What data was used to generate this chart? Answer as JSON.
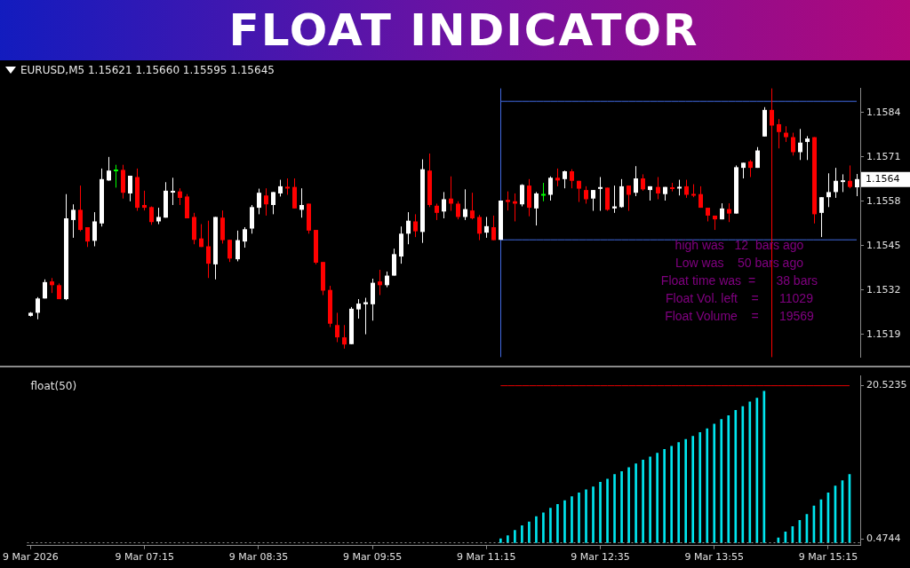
{
  "chart_data": [
    {
      "type": "candlestick",
      "title": "FLOAT INDICATOR",
      "subtitle": "EURUSD,M5  1.15621 1.15660 1.15595 1.15645",
      "categories": [
        "9 Mar 05:55",
        "9 Mar 06:00",
        "9 Mar 06:05",
        "9 Mar 06:10",
        "9 Mar 06:15",
        "9 Mar 06:20",
        "9 Mar 06:25",
        "9 Mar 06:30",
        "9 Mar 06:35",
        "9 Mar 06:40",
        "9 Mar 06:45",
        "9 Mar 06:50",
        "9 Mar 06:55",
        "9 Mar 07:00",
        "9 Mar 07:05",
        "9 Mar 07:10",
        "9 Mar 07:15",
        "9 Mar 07:20",
        "9 Mar 07:25",
        "9 Mar 07:30",
        "9 Mar 07:35",
        "9 Mar 07:40",
        "9 Mar 07:45",
        "9 Mar 07:50",
        "9 Mar 07:55",
        "9 Mar 08:00",
        "9 Mar 08:05",
        "9 Mar 08:10",
        "9 Mar 08:15",
        "9 Mar 08:20",
        "9 Mar 08:25",
        "9 Mar 08:30",
        "9 Mar 08:35",
        "9 Mar 08:40",
        "9 Mar 08:45",
        "9 Mar 08:50",
        "9 Mar 08:55",
        "9 Mar 09:00",
        "9 Mar 09:05",
        "9 Mar 09:10",
        "9 Mar 09:15",
        "9 Mar 09:20",
        "9 Mar 09:25",
        "9 Mar 09:30",
        "9 Mar 09:35",
        "9 Mar 09:40",
        "9 Mar 09:45",
        "9 Mar 09:50",
        "9 Mar 09:55",
        "9 Mar 10:00",
        "9 Mar 10:05",
        "9 Mar 10:10",
        "9 Mar 10:15",
        "9 Mar 10:20",
        "9 Mar 10:25",
        "9 Mar 10:30",
        "9 Mar 10:35",
        "9 Mar 10:40",
        "9 Mar 10:45",
        "9 Mar 10:50",
        "9 Mar 10:55",
        "9 Mar 11:00",
        "9 Mar 11:05",
        "9 Mar 11:10",
        "9 Mar 11:15",
        "9 Mar 11:20",
        "9 Mar 11:25",
        "9 Mar 11:30",
        "9 Mar 11:35",
        "9 Mar 11:40",
        "9 Mar 11:45",
        "9 Mar 11:50",
        "9 Mar 11:55",
        "9 Mar 12:00",
        "9 Mar 12:05",
        "9 Mar 12:10",
        "9 Mar 12:15",
        "9 Mar 12:20",
        "9 Mar 12:25",
        "9 Mar 12:30",
        "9 Mar 12:35",
        "9 Mar 12:40",
        "9 Mar 12:45",
        "9 Mar 12:50",
        "9 Mar 12:55",
        "9 Mar 13:00",
        "9 Mar 13:05",
        "9 Mar 13:10",
        "9 Mar 13:15",
        "9 Mar 13:20",
        "9 Mar 13:25",
        "9 Mar 13:30",
        "9 Mar 13:35",
        "9 Mar 13:40",
        "9 Mar 13:45",
        "9 Mar 13:50",
        "9 Mar 13:55",
        "9 Mar 14:00",
        "9 Mar 14:05",
        "9 Mar 14:10",
        "9 Mar 14:15",
        "9 Mar 14:20",
        "9 Mar 14:25",
        "9 Mar 14:30",
        "9 Mar 14:35",
        "9 Mar 14:40",
        "9 Mar 14:45",
        "9 Mar 14:50",
        "9 Mar 14:55",
        "9 Mar 15:00",
        "9 Mar 15:05",
        "9 Mar 15:10",
        "9 Mar 15:15",
        "9 Mar 15:20",
        "9 Mar 15:25",
        "9 Mar 15:30",
        "9 Mar 15:35"
      ],
      "ohlc": [
        [
          1.15244,
          1.15255,
          1.15242,
          1.15253
        ],
        [
          1.15253,
          1.15299,
          1.15234,
          1.15295
        ],
        [
          1.15295,
          1.15351,
          1.15295,
          1.15343
        ],
        [
          1.15345,
          1.15355,
          1.15311,
          1.15334
        ],
        [
          1.15334,
          1.15339,
          1.15293,
          1.15293
        ],
        [
          1.15293,
          1.15601,
          1.1529,
          1.1553
        ],
        [
          1.15525,
          1.15571,
          1.15473,
          1.15555
        ],
        [
          1.15555,
          1.15626,
          1.15492,
          1.15496
        ],
        [
          1.15504,
          1.15504,
          1.15446,
          1.15462
        ],
        [
          1.15464,
          1.15548,
          1.15448,
          1.15521
        ],
        [
          1.15515,
          1.15676,
          1.15506,
          1.15645
        ],
        [
          1.15641,
          1.1571,
          1.1564,
          1.1567
        ],
        [
          1.1567,
          1.15687,
          1.1562,
          1.15671
        ],
        [
          1.15672,
          1.15687,
          1.15588,
          1.15605
        ],
        [
          1.15603,
          1.15655,
          1.1558,
          1.15655
        ],
        [
          1.15651,
          1.15676,
          1.15552,
          1.15561
        ],
        [
          1.15569,
          1.15611,
          1.15553,
          1.15561
        ],
        [
          1.15563,
          1.15565,
          1.15511,
          1.15519
        ],
        [
          1.15521,
          1.15561,
          1.15513,
          1.15534
        ],
        [
          1.15532,
          1.15636,
          1.15532,
          1.15611
        ],
        [
          1.15607,
          1.15649,
          1.15569,
          1.15609
        ],
        [
          1.15609,
          1.15618,
          1.15569,
          1.1559
        ],
        [
          1.15594,
          1.15601,
          1.1553,
          1.1553
        ],
        [
          1.15534,
          1.15546,
          1.15454,
          1.15467
        ],
        [
          1.15471,
          1.15513,
          1.15446,
          1.15446
        ],
        [
          1.15448,
          1.15523,
          1.15355,
          1.15397
        ],
        [
          1.15395,
          1.15534,
          1.15351,
          1.15534
        ],
        [
          1.15532,
          1.15553,
          1.15456,
          1.15466
        ],
        [
          1.15467,
          1.15467,
          1.15402,
          1.15412
        ],
        [
          1.1541,
          1.15494,
          1.15404,
          1.15466
        ],
        [
          1.15462,
          1.15504,
          1.15444,
          1.15498
        ],
        [
          1.155,
          1.15569,
          1.15485,
          1.15563
        ],
        [
          1.15561,
          1.15617,
          1.15542,
          1.15605
        ],
        [
          1.15597,
          1.15618,
          1.15538,
          1.15571
        ],
        [
          1.15569,
          1.15607,
          1.15542,
          1.15607
        ],
        [
          1.15603,
          1.15643,
          1.15594,
          1.15624
        ],
        [
          1.15622,
          1.15647,
          1.15599,
          1.15618
        ],
        [
          1.15622,
          1.15647,
          1.15559,
          1.15559
        ],
        [
          1.15555,
          1.15618,
          1.15532,
          1.15569
        ],
        [
          1.15573,
          1.15573,
          1.15485,
          1.15494
        ],
        [
          1.15496,
          1.15496,
          1.15395,
          1.154
        ],
        [
          1.15402,
          1.15402,
          1.15305,
          1.15318
        ],
        [
          1.1532,
          1.15332,
          1.15211,
          1.15221
        ],
        [
          1.15217,
          1.15253,
          1.15167,
          1.15181
        ],
        [
          1.15181,
          1.15217,
          1.15148,
          1.1516
        ],
        [
          1.15161,
          1.1527,
          1.15161,
          1.15265
        ],
        [
          1.15263,
          1.15293,
          1.15236,
          1.1528
        ],
        [
          1.15278,
          1.15297,
          1.1519,
          1.15284
        ],
        [
          1.15278,
          1.15353,
          1.1523,
          1.15341
        ],
        [
          1.15345,
          1.15379,
          1.15305,
          1.15334
        ],
        [
          1.15334,
          1.15374,
          1.15328,
          1.15362
        ],
        [
          1.15362,
          1.15441,
          1.15362,
          1.15425
        ],
        [
          1.15418,
          1.15506,
          1.15397,
          1.15485
        ],
        [
          1.15485,
          1.15548,
          1.15454,
          1.15523
        ],
        [
          1.15521,
          1.15542,
          1.15475,
          1.15492
        ],
        [
          1.1549,
          1.15703,
          1.15458,
          1.15674
        ],
        [
          1.1567,
          1.1572,
          1.15563,
          1.15569
        ],
        [
          1.15567,
          1.15573,
          1.15525,
          1.15546
        ],
        [
          1.1555,
          1.15607,
          1.1553,
          1.15586
        ],
        [
          1.15588,
          1.15653,
          1.15552,
          1.15573
        ],
        [
          1.15573,
          1.1558,
          1.15527,
          1.15534
        ],
        [
          1.15534,
          1.15615,
          1.15525,
          1.15557
        ],
        [
          1.15553,
          1.15605,
          1.15527,
          1.1553
        ],
        [
          1.15534,
          1.1554,
          1.15466,
          1.15485
        ],
        [
          1.15488,
          1.15534,
          1.15473,
          1.15507
        ],
        [
          1.15504,
          1.15538,
          1.15466,
          1.15466
        ],
        [
          1.15467,
          1.15582,
          1.15467,
          1.15582
        ],
        [
          1.15584,
          1.15609,
          1.15553,
          1.15578
        ],
        [
          1.1558,
          1.15603,
          1.15521,
          1.15573
        ],
        [
          1.15571,
          1.1563,
          1.15565,
          1.15628
        ],
        [
          1.15626,
          1.15645,
          1.15536,
          1.15561
        ],
        [
          1.15559,
          1.15607,
          1.15509,
          1.15603
        ],
        [
          1.15599,
          1.15634,
          1.1558,
          1.15599
        ],
        [
          1.15599,
          1.15653,
          1.15582,
          1.15649
        ],
        [
          1.15649,
          1.15676,
          1.15624,
          1.15641
        ],
        [
          1.15645,
          1.1567,
          1.15618,
          1.15668
        ],
        [
          1.15668,
          1.15674,
          1.15618,
          1.1564
        ],
        [
          1.1564,
          1.1564,
          1.15578,
          1.15617
        ],
        [
          1.15613,
          1.15624,
          1.15573,
          1.15586
        ],
        [
          1.15588,
          1.15613,
          1.15552,
          1.15613
        ],
        [
          1.15618,
          1.15651,
          1.15552,
          1.1562
        ],
        [
          1.1562,
          1.1562,
          1.15552,
          1.15555
        ],
        [
          1.15559,
          1.15626,
          1.15546,
          1.15565
        ],
        [
          1.15563,
          1.15645,
          1.15561,
          1.15624
        ],
        [
          1.15626,
          1.15626,
          1.15552,
          1.15599
        ],
        [
          1.15605,
          1.15683,
          1.15595,
          1.15647
        ],
        [
          1.15647,
          1.15659,
          1.15611,
          1.15615
        ],
        [
          1.15613,
          1.15624,
          1.15582,
          1.15624
        ],
        [
          1.15622,
          1.15651,
          1.15586,
          1.15603
        ],
        [
          1.15601,
          1.15622,
          1.15582,
          1.15622
        ],
        [
          1.1562,
          1.15634,
          1.15609,
          1.15617
        ],
        [
          1.15618,
          1.15643,
          1.15597,
          1.15622
        ],
        [
          1.15624,
          1.15643,
          1.1559,
          1.15599
        ],
        [
          1.15601,
          1.1563,
          1.15592,
          1.15597
        ],
        [
          1.15601,
          1.15624,
          1.15561,
          1.15561
        ],
        [
          1.15561,
          1.15561,
          1.15521,
          1.15538
        ],
        [
          1.15538,
          1.15538,
          1.15496,
          1.15527
        ],
        [
          1.15527,
          1.15574,
          1.15527,
          1.15559
        ],
        [
          1.15557,
          1.15574,
          1.15519,
          1.15544
        ],
        [
          1.15544,
          1.15685,
          1.15544,
          1.1568
        ],
        [
          1.15678,
          1.15693,
          1.15647,
          1.15693
        ],
        [
          1.15697,
          1.15701,
          1.15651,
          1.15678
        ],
        [
          1.15678,
          1.15739,
          1.15678,
          1.15729
        ],
        [
          1.1577,
          1.15856,
          1.1577,
          1.15848
        ],
        [
          1.15848,
          1.15873,
          1.15796,
          1.15802
        ],
        [
          1.15806,
          1.15821,
          1.15735,
          1.15783
        ],
        [
          1.15781,
          1.158,
          1.15754,
          1.15768
        ],
        [
          1.15768,
          1.15781,
          1.15714,
          1.15724
        ],
        [
          1.15724,
          1.15792,
          1.15701,
          1.15752
        ],
        [
          1.15754,
          1.15771,
          1.15701,
          1.15764
        ],
        [
          1.15768,
          1.15768,
          1.15515,
          1.15542
        ],
        [
          1.15546,
          1.15592,
          1.15475,
          1.15592
        ],
        [
          1.15592,
          1.15662,
          1.15563,
          1.15607
        ],
        [
          1.15607,
          1.15678,
          1.1559,
          1.1564
        ],
        [
          1.15638,
          1.15659,
          1.15607,
          1.1564
        ],
        [
          1.1564,
          1.15685,
          1.15618,
          1.15622
        ],
        [
          1.15621,
          1.1566,
          1.15595,
          1.15645
        ]
      ],
      "colors": [
        "#ffffff",
        "#ffffff",
        "#ffffff",
        "#ff0000",
        "#ff0000",
        "#ffffff",
        "#ffffff",
        "#ff0000",
        "#ff0000",
        "#ffffff",
        "#ffffff",
        "#ffffff",
        "#00ff00",
        "#ff0000",
        "#ffffff",
        "#ff0000",
        "#ff0000",
        "#ff0000",
        "#ffffff",
        "#ffffff",
        "#ffffff",
        "#ff0000",
        "#ff0000",
        "#ff0000",
        "#ff0000",
        "#ff0000",
        "#ffffff",
        "#ff0000",
        "#ff0000",
        "#ffffff",
        "#ffffff",
        "#ffffff",
        "#ffffff",
        "#ff0000",
        "#ffffff",
        "#ffffff",
        "#ff0000",
        "#ff0000",
        "#ffffff",
        "#ff0000",
        "#ff0000",
        "#ff0000",
        "#ff0000",
        "#ff0000",
        "#ff0000",
        "#ffffff",
        "#ffffff",
        "#ffffff",
        "#ffffff",
        "#ff0000",
        "#ffffff",
        "#ffffff",
        "#ffffff",
        "#ffffff",
        "#ff0000",
        "#ffffff",
        "#ff0000",
        "#ff0000",
        "#ffffff",
        "#ff0000",
        "#ff0000",
        "#ffffff",
        "#ff0000",
        "#ff0000",
        "#ffffff",
        "#ff0000",
        "#ffffff",
        "#ff0000",
        "#ff0000",
        "#ffffff",
        "#ff0000",
        "#ffffff",
        "#00ff00",
        "#ffffff",
        "#ff0000",
        "#ffffff",
        "#ff0000",
        "#ff0000",
        "#ff0000",
        "#ffffff",
        "#ffffff",
        "#ff0000",
        "#ffffff",
        "#ffffff",
        "#ff0000",
        "#ffffff",
        "#ff0000",
        "#ffffff",
        "#ff0000",
        "#ffffff",
        "#ff0000",
        "#ffffff",
        "#ff0000",
        "#ff0000",
        "#ff0000",
        "#ff0000",
        "#ff0000",
        "#ffffff",
        "#ff0000",
        "#ffffff",
        "#ffffff",
        "#ff0000",
        "#ffffff",
        "#ffffff",
        "#ff0000",
        "#ff0000",
        "#ff0000",
        "#ff0000",
        "#ffffff",
        "#ffffff",
        "#ff0000",
        "#ffffff",
        "#ffffff",
        "#ffffff",
        "#ffffff",
        "#ff0000",
        "#ffffff"
      ],
      "series": [
        {
          "type": "line",
          "color": "#4169e1",
          "values": [
            null,
            null,
            null,
            null,
            null,
            null,
            null,
            null,
            null,
            null,
            null,
            null,
            null,
            null,
            null,
            null,
            null,
            null,
            null,
            null,
            null,
            null,
            null,
            null,
            null,
            null,
            null,
            null,
            null,
            null,
            null,
            null,
            null,
            null,
            null,
            null,
            null,
            null,
            null,
            null,
            null,
            null,
            null,
            null,
            null,
            null,
            null,
            null,
            null,
            null,
            null,
            null,
            null,
            null,
            null,
            null,
            null,
            null,
            null,
            null,
            null,
            null,
            null,
            null,
            null,
            null,
            1.15873,
            1.15873,
            1.15873,
            1.15873,
            1.15873,
            1.15873,
            1.15873,
            1.15873,
            1.15873,
            1.15873,
            1.15873,
            1.15873,
            1.15873,
            1.15873,
            1.15873,
            1.15873,
            1.15873,
            1.15873,
            1.15873,
            1.15873,
            1.15873,
            1.15873,
            1.15873,
            1.15873,
            1.15873,
            1.15873,
            1.15873,
            1.15873,
            1.15873,
            1.15873,
            1.15873,
            1.15873,
            1.15873,
            1.15873,
            1.15873,
            1.15873,
            1.15873,
            1.15873,
            1.15873,
            1.15873,
            1.15873,
            1.15873,
            1.15873,
            1.15873,
            1.15873,
            1.15873,
            1.15873,
            1.15873,
            1.15873,
            1.15873,
            1.15873
          ]
        },
        {
          "type": "line",
          "color": "#4169e1",
          "values": [
            null,
            null,
            null,
            null,
            null,
            null,
            null,
            null,
            null,
            null,
            null,
            null,
            null,
            null,
            null,
            null,
            null,
            null,
            null,
            null,
            null,
            null,
            null,
            null,
            null,
            null,
            null,
            null,
            null,
            null,
            null,
            null,
            null,
            null,
            null,
            null,
            null,
            null,
            null,
            null,
            null,
            null,
            null,
            null,
            null,
            null,
            null,
            null,
            null,
            null,
            null,
            null,
            null,
            null,
            null,
            null,
            null,
            null,
            null,
            null,
            null,
            null,
            null,
            null,
            null,
            null,
            1.15467,
            1.15467,
            1.15467,
            1.15467,
            1.15467,
            1.15467,
            1.15467,
            1.15467,
            1.15467,
            1.15467,
            1.15467,
            1.15467,
            1.15467,
            1.15467,
            1.15467,
            1.15467,
            1.15467,
            1.15467,
            1.15467,
            1.15467,
            1.15467,
            1.15467,
            1.15467,
            1.15467,
            1.15467,
            1.15467,
            1.15467,
            1.15467,
            1.15467,
            1.15467,
            1.15467,
            1.15467,
            1.15467,
            1.15467,
            1.15467,
            1.15467,
            1.15467,
            1.15467,
            1.15467,
            1.15467,
            1.15467,
            1.15467,
            1.15467,
            1.15467,
            1.15467,
            1.15467,
            1.15467,
            1.15467,
            1.15467,
            1.15467,
            1.15467
          ]
        }
      ],
      "ref_lines": [
        {
          "axis": "x",
          "value": "9 Mar 11:25",
          "color": "#4169e1"
        },
        {
          "axis": "x",
          "value": "9 Mar 14:35",
          "color": "#ff0000"
        }
      ],
      "annotations": [
        "high was   12  bars ago",
        "Low was    50 bars ago",
        "Float time was  =      38 bars",
        "Float Vol. left    =      11029",
        "Float Volume    =      19569",
        "1.1564"
      ],
      "ylim": [
        1.15123,
        1.15911
      ],
      "yticks": [
        1.1519,
        1.1532,
        1.1545,
        1.1558,
        1.1571,
        1.1584
      ],
      "tick_labels": "y",
      "legend": false,
      "grid": false
    },
    {
      "type": "bar",
      "title": "float(50)",
      "categories": [
        "9 Mar 2026",
        null,
        null,
        null,
        null,
        null,
        null,
        null,
        null,
        null,
        null,
        null,
        null,
        null,
        null,
        null,
        "9 Mar 07:15",
        null,
        null,
        null,
        null,
        null,
        null,
        null,
        null,
        null,
        null,
        null,
        null,
        null,
        null,
        null,
        "9 Mar 08:35",
        null,
        null,
        null,
        null,
        null,
        null,
        null,
        null,
        null,
        null,
        null,
        null,
        null,
        null,
        null,
        "9 Mar 09:55",
        null,
        null,
        null,
        null,
        null,
        null,
        null,
        null,
        null,
        null,
        null,
        null,
        null,
        null,
        null,
        "9 Mar 11:15",
        null,
        null,
        null,
        null,
        null,
        null,
        null,
        null,
        null,
        null,
        null,
        null,
        null,
        null,
        null,
        "9 Mar 12:35",
        null,
        null,
        null,
        null,
        null,
        null,
        null,
        null,
        null,
        null,
        null,
        null,
        null,
        null,
        null,
        "9 Mar 13:55",
        null,
        null,
        null,
        null,
        null,
        null,
        null,
        null,
        null,
        null,
        null,
        null,
        null,
        null,
        null,
        "9 Mar 15:15",
        null,
        null,
        null,
        null
      ],
      "series": [
        {
          "type": "bar",
          "color": "#00e5ee",
          "values": [
            null,
            null,
            null,
            null,
            null,
            null,
            null,
            null,
            null,
            null,
            null,
            null,
            null,
            null,
            null,
            null,
            null,
            null,
            null,
            null,
            null,
            null,
            null,
            null,
            null,
            null,
            null,
            null,
            null,
            null,
            null,
            null,
            null,
            null,
            null,
            null,
            null,
            null,
            null,
            null,
            null,
            null,
            null,
            null,
            null,
            null,
            null,
            null,
            null,
            null,
            null,
            null,
            null,
            null,
            null,
            null,
            null,
            null,
            null,
            null,
            null,
            null,
            null,
            null,
            null,
            null,
            0.5,
            0.9,
            1.6,
            2.2,
            2.7,
            3.4,
            3.9,
            4.5,
            5.0,
            5.5,
            6.0,
            6.5,
            6.9,
            7.3,
            7.9,
            8.3,
            8.9,
            9.3,
            9.8,
            10.3,
            10.8,
            11.2,
            11.7,
            12.2,
            12.6,
            13.1,
            13.5,
            13.9,
            14.4,
            14.9,
            15.5,
            16.1,
            16.6,
            17.3,
            17.8,
            18.4,
            18.9,
            19.8,
            null,
            0.6,
            1.4,
            2.1,
            2.9,
            3.7,
            4.8,
            5.6,
            6.5,
            7.4,
            8.1,
            8.9,
            null
          ]
        },
        {
          "type": "line",
          "color": "#e00000",
          "values": [
            null,
            null,
            null,
            null,
            null,
            null,
            null,
            null,
            null,
            null,
            null,
            null,
            null,
            null,
            null,
            null,
            null,
            null,
            null,
            null,
            null,
            null,
            null,
            null,
            null,
            null,
            null,
            null,
            null,
            null,
            null,
            null,
            null,
            null,
            null,
            null,
            null,
            null,
            null,
            null,
            null,
            null,
            null,
            null,
            null,
            null,
            null,
            null,
            null,
            null,
            null,
            null,
            null,
            null,
            null,
            null,
            null,
            null,
            null,
            null,
            null,
            null,
            null,
            null,
            null,
            null,
            20.5235,
            20.5235,
            20.5235,
            20.5235,
            20.5235,
            20.5235,
            20.5235,
            20.5235,
            20.5235,
            20.5235,
            20.5235,
            20.5235,
            20.5235,
            20.5235,
            20.5235,
            20.5235,
            20.5235,
            20.5235,
            20.5235,
            20.5235,
            20.5235,
            20.5235,
            20.5235,
            20.5235,
            20.5235,
            20.5235,
            20.5235,
            20.5235,
            20.5235,
            20.5235,
            20.5235,
            20.5235,
            20.5235,
            20.5235,
            20.5235,
            20.5235,
            20.5235,
            20.5235,
            20.5235,
            20.5235,
            20.5235,
            20.5235,
            20.5235,
            20.5235,
            20.5235,
            20.5235,
            20.5235,
            20.5235,
            20.5235,
            20.5235,
            null
          ]
        }
      ],
      "ref_lines": [
        {
          "axis": "y",
          "value": 0,
          "color": "#909090",
          "line_style": "dotted"
        }
      ],
      "ylim": [
        -0.4,
        21.8
      ],
      "yticks": [
        0.4744,
        20.5235
      ],
      "legend": false,
      "grid": false
    }
  ]
}
